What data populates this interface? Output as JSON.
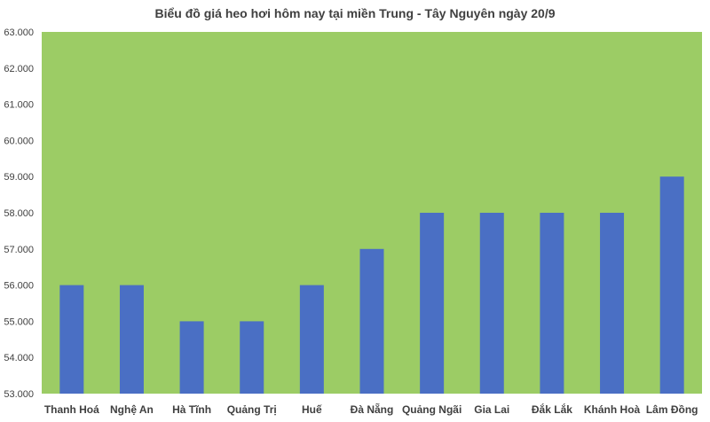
{
  "chart_data": {
    "type": "bar",
    "title": "Biểu đồ giá heo hơi hôm nay tại miền Trung - Tây Nguyên ngày 20/9",
    "xlabel": "",
    "ylabel": "",
    "categories": [
      "Thanh Hoá",
      "Nghệ An",
      "Hà Tĩnh",
      "Quảng Trị",
      "Huế",
      "Đà Nẵng",
      "Quảng Ngãi",
      "Gia Lai",
      "Đắk Lắk",
      "Khánh Hoà",
      "Lâm Đồng"
    ],
    "values": [
      56000,
      56000,
      55000,
      55000,
      56000,
      57000,
      58000,
      58000,
      58000,
      58000,
      59000
    ],
    "ylim": [
      53000,
      63000
    ],
    "ytick_labels": [
      "53.000",
      "54.000",
      "55.000",
      "56.000",
      "57.000",
      "58.000",
      "59.000",
      "60.000",
      "61.000",
      "62.000",
      "63.000"
    ],
    "grid": false,
    "legend": "none",
    "colors": {
      "plot_background": "#9ccc65",
      "bar": "#4a6fc4",
      "title": "#404040",
      "axis_text": "#404040"
    }
  }
}
